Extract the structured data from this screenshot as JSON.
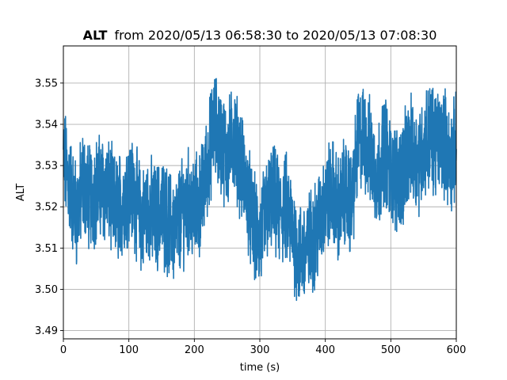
{
  "chart_data": {
    "type": "line",
    "title_bold": "ALT",
    "title_rest": "from 2020/05/13 06:58:30 to 2020/05/13 07:08:30",
    "xlabel": "time (s)",
    "ylabel": "ALT",
    "xlim": [
      0,
      600
    ],
    "ylim": [
      3.488,
      3.559
    ],
    "xticks": [
      0,
      100,
      200,
      300,
      400,
      500,
      600
    ],
    "xtick_labels": [
      "0",
      "100",
      "200",
      "300",
      "400",
      "500",
      "600"
    ],
    "yticks": [
      3.49,
      3.5,
      3.51,
      3.52,
      3.53,
      3.54,
      3.55
    ],
    "ytick_labels": [
      "3.49",
      "3.50",
      "3.51",
      "3.52",
      "3.53",
      "3.54",
      "3.55"
    ],
    "grid": true,
    "series": [
      {
        "color": "#1f77b4",
        "x": [
          0,
          10,
          20,
          30,
          40,
          50,
          60,
          70,
          80,
          90,
          100,
          110,
          120,
          130,
          140,
          150,
          160,
          170,
          180,
          190,
          200,
          210,
          220,
          230,
          240,
          250,
          260,
          270,
          280,
          290,
          300,
          310,
          320,
          330,
          340,
          350,
          360,
          370,
          380,
          390,
          400,
          410,
          420,
          430,
          440,
          450,
          460,
          470,
          480,
          490,
          500,
          510,
          520,
          530,
          540,
          550,
          560,
          570,
          580,
          590,
          600
        ],
        "y": [
          3.532,
          3.525,
          3.518,
          3.526,
          3.522,
          3.524,
          3.525,
          3.523,
          3.519,
          3.521,
          3.525,
          3.522,
          3.516,
          3.52,
          3.517,
          3.519,
          3.516,
          3.514,
          3.518,
          3.521,
          3.519,
          3.521,
          3.53,
          3.54,
          3.536,
          3.532,
          3.537,
          3.531,
          3.524,
          3.515,
          3.512,
          3.519,
          3.522,
          3.518,
          3.52,
          3.514,
          3.508,
          3.509,
          3.512,
          3.516,
          3.521,
          3.524,
          3.519,
          3.524,
          3.52,
          3.536,
          3.537,
          3.532,
          3.527,
          3.535,
          3.528,
          3.527,
          3.529,
          3.534,
          3.531,
          3.534,
          3.538,
          3.535,
          3.537,
          3.531,
          3.534
        ]
      }
    ]
  }
}
